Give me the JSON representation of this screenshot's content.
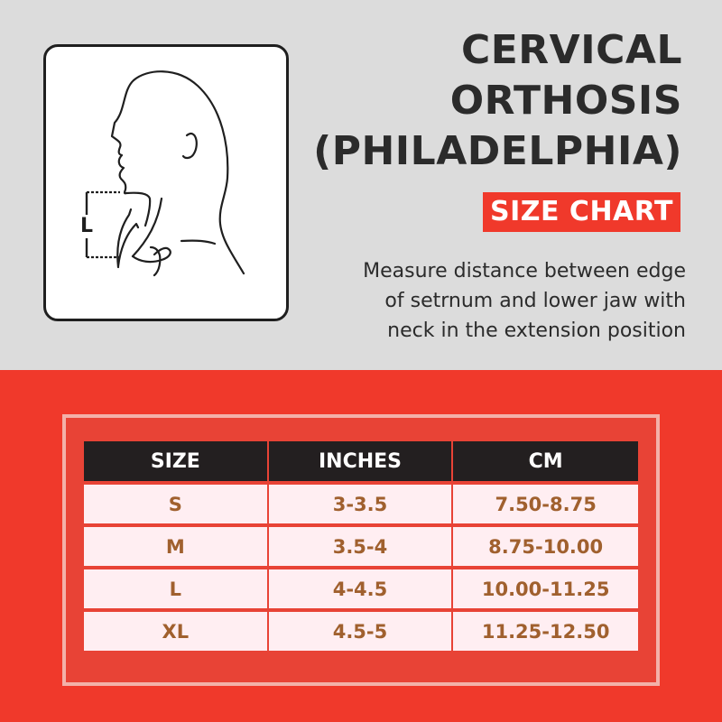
{
  "header": {
    "title_lines": [
      "CERVICAL",
      "ORTHOSIS",
      "(PHILADELPHIA)"
    ],
    "badge": "SIZE CHART",
    "description_lines": [
      "Measure distance between edge",
      "of setrnum  and lower jaw with",
      "neck in the extension position"
    ]
  },
  "illustration": {
    "measure_label": "L",
    "icon": "head-profile-neck-measurement-icon"
  },
  "table": {
    "headers": [
      "SIZE",
      "INCHES",
      "CM"
    ],
    "rows": [
      [
        "S",
        "3-3.5",
        "7.50-8.75"
      ],
      [
        "M",
        "3.5-4",
        "8.75-10.00"
      ],
      [
        "L",
        "4-4.5",
        "10.00-11.25"
      ],
      [
        "XL",
        "4.5-5",
        "11.25-12.50"
      ]
    ]
  },
  "colors": {
    "accent": "#f0392b",
    "panel_top": "#dcdcdc",
    "header_row": "#231f20",
    "cell_bg": "#ffeef2",
    "cell_text": "#a0602e",
    "title_text": "#2b2b2b"
  }
}
